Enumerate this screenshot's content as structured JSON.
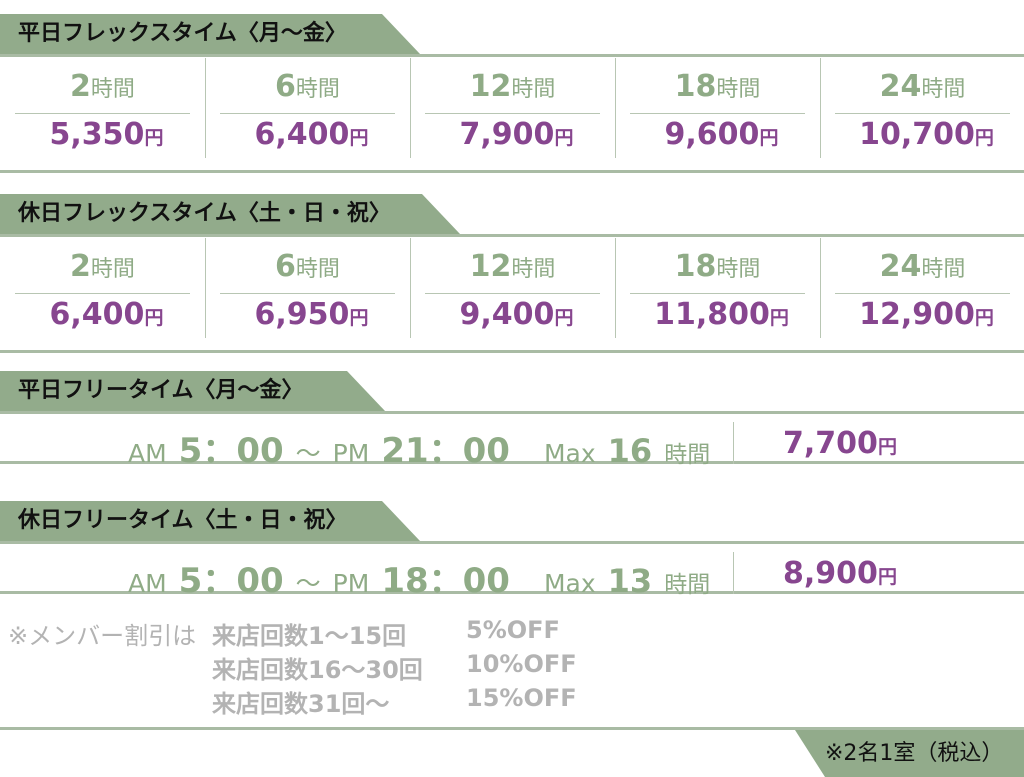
{
  "sections": [
    {
      "title": "平日フレックスタイム〈月〜金〉",
      "plans": [
        {
          "hours": "2",
          "hours_unit": "時間",
          "price": "5,350",
          "price_unit": "円"
        },
        {
          "hours": "6",
          "hours_unit": "時間",
          "price": "6,400",
          "price_unit": "円"
        },
        {
          "hours": "12",
          "hours_unit": "時間",
          "price": "7,900",
          "price_unit": "円"
        },
        {
          "hours": "18",
          "hours_unit": "時間",
          "price": "9,600",
          "price_unit": "円"
        },
        {
          "hours": "24",
          "hours_unit": "時間",
          "price": "10,700",
          "price_unit": "円"
        }
      ]
    },
    {
      "title": "休日フレックスタイム〈土・日・祝〉",
      "plans": [
        {
          "hours": "2",
          "hours_unit": "時間",
          "price": "6,400",
          "price_unit": "円"
        },
        {
          "hours": "6",
          "hours_unit": "時間",
          "price": "6,950",
          "price_unit": "円"
        },
        {
          "hours": "12",
          "hours_unit": "時間",
          "price": "9,400",
          "price_unit": "円"
        },
        {
          "hours": "18",
          "hours_unit": "時間",
          "price": "11,800",
          "price_unit": "円"
        },
        {
          "hours": "24",
          "hours_unit": "時間",
          "price": "12,900",
          "price_unit": "円"
        }
      ]
    },
    {
      "title": "平日フリータイム〈月〜金〉",
      "free": {
        "start_label": "AM",
        "start": "5：00",
        "sep": "〜",
        "end_label": "PM",
        "end": "21：00",
        "max_label": "Max",
        "max": "16",
        "max_unit": "時間",
        "price": "7,700",
        "price_unit": "円"
      }
    },
    {
      "title": "休日フリータイム〈土・日・祝〉",
      "free": {
        "start_label": "AM",
        "start": "5：00",
        "sep": "〜",
        "end_label": "PM",
        "end": "18：00",
        "max_label": "Max",
        "max": "13",
        "max_unit": "時間",
        "price": "8,900",
        "price_unit": "円"
      }
    }
  ],
  "notes": {
    "prefix": "※メンバー割引は",
    "rows": [
      {
        "condition": "来店回数1〜15回",
        "discount": "5%OFF"
      },
      {
        "condition": "来店回数16〜30回",
        "discount": "10%OFF"
      },
      {
        "condition": "来店回数31回〜",
        "discount": "15%OFF"
      }
    ]
  },
  "footer": "※2名1室（税込）"
}
